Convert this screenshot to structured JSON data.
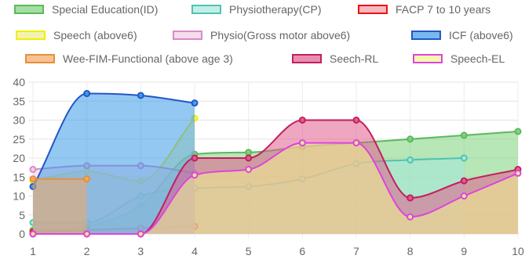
{
  "chart_data": {
    "type": "area",
    "x": [
      1,
      2,
      3,
      4,
      5,
      6,
      7,
      8,
      9,
      10
    ],
    "xlim": [
      1,
      10
    ],
    "ylim": [
      0,
      40
    ],
    "yticks": [
      0,
      5,
      10,
      15,
      20,
      25,
      30,
      35,
      40
    ],
    "grid": true,
    "legend_position": "top",
    "series": [
      {
        "name": "Special Education(ID)",
        "border": "#5cb85c",
        "fill": "#7cd17c",
        "values": [
          1,
          2,
          7.5,
          21,
          21.5,
          23,
          24,
          25,
          26,
          27
        ]
      },
      {
        "name": "Physiotherapy(CP)",
        "border": "#4ec4b1",
        "fill": "#a6e8dc",
        "values": [
          3,
          3,
          10,
          12,
          12.5,
          14.5,
          18.5,
          19.5,
          20,
          null
        ]
      },
      {
        "name": "FACP 7 to 10 years",
        "border": "#ee1111",
        "fill": "#f29aa6",
        "values": [
          0.5,
          1,
          1.5,
          2,
          null,
          null,
          null,
          null,
          null,
          null
        ]
      },
      {
        "name": "Speech (above6)",
        "border": "#f0f000",
        "fill": "#ecec90",
        "values": [
          14,
          16.5,
          14,
          30.5,
          null,
          null,
          null,
          null,
          null,
          null
        ]
      },
      {
        "name": "Physio(Gross motor above6)",
        "border": "#d98ac7",
        "fill": "#f2cde4",
        "values": [
          17,
          18,
          18,
          16,
          null,
          null,
          null,
          null,
          null,
          null
        ]
      },
      {
        "name": "ICF (above6)",
        "border": "#2456c8",
        "fill": "#3a9be8",
        "values": [
          12.5,
          37,
          36.5,
          34.5,
          null,
          null,
          null,
          null,
          null,
          null
        ]
      },
      {
        "name": "Wee-FIM-Functional (above age 3)",
        "border": "#e69138",
        "fill": "#f2a765",
        "values": [
          14.5,
          14.5,
          null,
          null,
          null,
          null,
          null,
          null,
          null,
          null
        ]
      },
      {
        "name": "Seech-RL",
        "border": "#c21f5f",
        "fill": "#e25c8e",
        "values": [
          0,
          0,
          0,
          20,
          20,
          30,
          30,
          9.5,
          14,
          17
        ]
      },
      {
        "name": "Speech-EL",
        "border": "#dd44dd",
        "fill": "#f2f28f",
        "values": [
          0,
          0,
          0,
          15.5,
          17,
          24,
          24,
          4.5,
          10,
          16
        ]
      }
    ]
  }
}
